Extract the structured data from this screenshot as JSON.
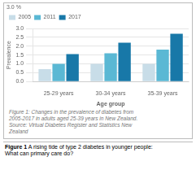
{
  "chart_data": {
    "type": "bar",
    "categories": [
      "25-29 years",
      "30-34 years",
      "35-39 years"
    ],
    "series": [
      {
        "name": "2005",
        "color": "#c8dde8",
        "values": [
          0.7,
          1.0,
          1.0
        ]
      },
      {
        "name": "2011",
        "color": "#5ab8d4",
        "values": [
          1.0,
          1.6,
          1.8
        ]
      },
      {
        "name": "2017",
        "color": "#1878a8",
        "values": [
          1.55,
          2.2,
          2.7
        ]
      }
    ],
    "xlabel": "Age group",
    "ylabel": "Prevalence",
    "ylim": [
      0,
      3.0
    ],
    "yticks": [
      {
        "value": 0.0,
        "label": "0.0"
      },
      0.5,
      {
        "value": 1.0,
        "label": "1.0"
      },
      1.5,
      {
        "value": 2.0,
        "label": "2.0"
      },
      2.5,
      {
        "value": 3.0,
        "label": "3.0"
      }
    ],
    "annotations": [
      "3.0 %"
    ],
    "caption": "Figure 1: Changes in the prevalence of diabetes from\n2005-2017 in adults aged 25-39 years in New Zealand.\nSource: Virtual Diabetes Register and Statistics New\nZealand",
    "footer": [
      "Figure 1",
      " A rising tide of type 2 diabetes in younger people:\nWhat can primary care do?"
    ],
    "grid": true,
    "legend": "upper left"
  }
}
